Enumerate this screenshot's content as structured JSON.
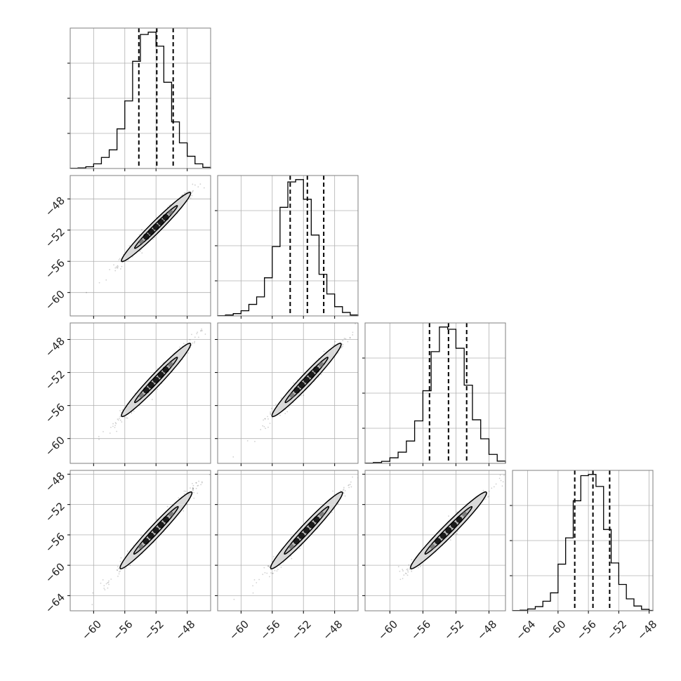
{
  "chart_data": {
    "type": "corner",
    "grid": true,
    "title": "",
    "parameters": [
      "",
      "",
      "",
      ""
    ],
    "ranges": [
      [
        -63,
        -45
      ],
      [
        -63,
        -45
      ],
      [
        -63,
        -46
      ],
      [
        -66,
        -47.5
      ]
    ],
    "tick_values": [
      [
        -60,
        -56,
        -52,
        -48
      ],
      [
        -60,
        -56,
        -52,
        -48
      ],
      [
        -60,
        -56,
        -52,
        -48
      ],
      [
        -64,
        -60,
        -56,
        -52,
        -48
      ]
    ],
    "tick_labels": [
      [
        "−60",
        "−56",
        "−52",
        "−48"
      ],
      [
        "−60",
        "−56",
        "−52",
        "−48"
      ],
      [
        "−60",
        "−56",
        "−52",
        "−48"
      ],
      [
        "−64",
        "−60",
        "−56",
        "−52",
        "−48"
      ]
    ],
    "histograms": [
      {
        "param": 0,
        "bin_edges": [
          -63.0,
          -62.0,
          -61.0,
          -60.0,
          -59.0,
          -58.0,
          -57.0,
          -56.0,
          -55.0,
          -54.0,
          -53.0,
          -52.0,
          -51.0,
          -50.0,
          -49.0,
          -48.0,
          -47.0,
          -46.0,
          -45.0
        ],
        "counts": [
          2,
          5,
          15,
          40,
          95,
          160,
          340,
          580,
          920,
          1150,
          1170,
          1050,
          740,
          400,
          220,
          105,
          40,
          10
        ],
        "quantiles": [
          -54.2,
          -51.9,
          -49.8
        ]
      },
      {
        "param": 1,
        "bin_edges": [
          -63.0,
          -62.0,
          -61.0,
          -60.0,
          -59.0,
          -58.0,
          -57.0,
          -56.0,
          -55.0,
          -54.0,
          -53.0,
          -52.0,
          -51.0,
          -50.0,
          -49.0,
          -48.0,
          -47.0,
          -46.0,
          -45.0
        ],
        "counts": [
          2,
          8,
          20,
          45,
          100,
          165,
          330,
          600,
          940,
          1160,
          1180,
          1010,
          700,
          360,
          190,
          80,
          30,
          8
        ],
        "quantiles": [
          -53.7,
          -51.5,
          -49.4
        ]
      },
      {
        "param": 2,
        "bin_edges": [
          -63.0,
          -62.0,
          -61.0,
          -60.0,
          -59.0,
          -58.0,
          -57.0,
          -56.0,
          -55.0,
          -54.0,
          -53.0,
          -52.0,
          -51.0,
          -50.0,
          -49.0,
          -48.0,
          -47.0,
          -46.0
        ],
        "counts": [
          2,
          8,
          18,
          50,
          100,
          200,
          380,
          650,
          1000,
          1220,
          1200,
          1030,
          700,
          390,
          220,
          80,
          20
        ],
        "quantiles": [
          -55.2,
          -52.9,
          -50.7
        ]
      },
      {
        "param": 3,
        "bin_edges": [
          -66.0,
          -65.0,
          -64.0,
          -63.0,
          -62.0,
          -61.0,
          -60.0,
          -59.0,
          -58.0,
          -57.0,
          -56.0,
          -55.0,
          -54.0,
          -53.0,
          -52.0,
          -51.0,
          -50.0,
          -49.0,
          -48.0,
          -47.5
        ],
        "counts": [
          2,
          5,
          15,
          35,
          80,
          150,
          390,
          610,
          920,
          1130,
          1140,
          1040,
          680,
          400,
          220,
          100,
          40,
          12,
          3
        ],
        "quantiles": [
          -57.8,
          -55.4,
          -53.2
        ]
      }
    ],
    "pairs": [
      {
        "x_param": 0,
        "y_param": 1,
        "mean": [
          -52.0,
          -51.6
        ],
        "along_sd": 2.2,
        "across_sd": 0.32,
        "slope": 1.0,
        "contours": [
          {
            "level": 0.39,
            "half_width": 2.5,
            "half_length_sd": 1.3
          },
          {
            "level": 0.86,
            "half_width": 5.2,
            "half_length_sd": 2.1
          }
        ],
        "extent": [
          -62,
          -46
        ]
      },
      {
        "x_param": 0,
        "y_param": 2,
        "mean": [
          -52.0,
          -52.9
        ],
        "along_sd": 2.2,
        "across_sd": 0.33,
        "slope": 1.0,
        "contours": [
          {
            "level": 0.39,
            "half_width": 2.5,
            "half_length_sd": 1.3
          },
          {
            "level": 0.86,
            "half_width": 5.2,
            "half_length_sd": 2.1
          }
        ],
        "extent": [
          -62,
          -46
        ]
      },
      {
        "x_param": 1,
        "y_param": 2,
        "mean": [
          -51.6,
          -52.9
        ],
        "along_sd": 2.2,
        "across_sd": 0.33,
        "slope": 1.0,
        "contours": [
          {
            "level": 0.39,
            "half_width": 2.5,
            "half_length_sd": 1.3
          },
          {
            "level": 0.86,
            "half_width": 5.2,
            "half_length_sd": 2.1
          }
        ],
        "extent": [
          -62,
          -46
        ]
      },
      {
        "x_param": 0,
        "y_param": 3,
        "mean": [
          -52.0,
          -55.4
        ],
        "along_sd": 2.4,
        "across_sd": 0.35,
        "slope": 1.1,
        "contours": [
          {
            "level": 0.39,
            "half_width": 2.5,
            "half_length_sd": 1.3
          },
          {
            "level": 0.86,
            "half_width": 5.2,
            "half_length_sd": 2.1
          }
        ],
        "extent": [
          -62,
          -46
        ]
      },
      {
        "x_param": 1,
        "y_param": 3,
        "mean": [
          -51.6,
          -55.4
        ],
        "along_sd": 2.4,
        "across_sd": 0.36,
        "slope": 1.1,
        "contours": [
          {
            "level": 0.39,
            "half_width": 2.5,
            "half_length_sd": 1.3
          },
          {
            "level": 0.86,
            "half_width": 5.2,
            "half_length_sd": 2.1
          }
        ],
        "extent": [
          -62,
          -46
        ]
      },
      {
        "x_param": 2,
        "y_param": 3,
        "mean": [
          -52.9,
          -55.4
        ],
        "along_sd": 2.4,
        "across_sd": 0.35,
        "slope": 1.1,
        "contours": [
          {
            "level": 0.39,
            "half_width": 2.5,
            "half_length_sd": 1.3
          },
          {
            "level": 0.86,
            "half_width": 5.2,
            "half_length_sd": 2.1
          }
        ],
        "extent": [
          -63,
          -46.5
        ]
      }
    ],
    "colors": {
      "line": "#000000",
      "grid": "#b0b0b0",
      "contour_fill": "#d9d9d9",
      "density_dark": "#000000",
      "spine": "#7f7f7f"
    }
  }
}
